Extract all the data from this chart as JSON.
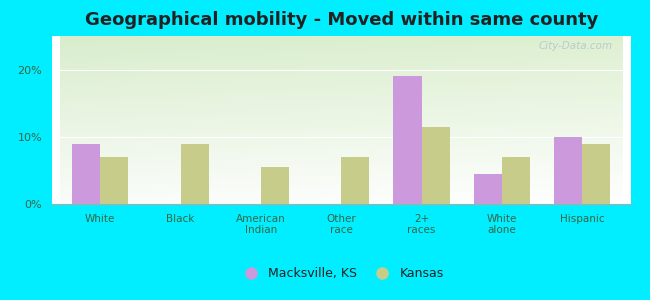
{
  "title": "Geographical mobility - Moved within same county",
  "categories": [
    "White",
    "Black",
    "American\nIndian",
    "Other\nrace",
    "2+\nraces",
    "White\nalone",
    "Hispanic"
  ],
  "macksville_values": [
    9.0,
    0,
    0,
    0,
    19.0,
    4.5,
    10.0
  ],
  "kansas_values": [
    7.0,
    9.0,
    5.5,
    7.0,
    11.5,
    7.0,
    9.0
  ],
  "bar_color_macksville": "#cc99dd",
  "bar_color_kansas": "#c8cc8a",
  "background_outer": "#00eeff",
  "ylim": [
    0,
    25
  ],
  "yticks": [
    0,
    10,
    20
  ],
  "ytick_labels": [
    "0%",
    "10%",
    "20%"
  ],
  "legend_macksville": "Macksville, KS",
  "legend_kansas": "Kansas",
  "title_fontsize": 13,
  "bar_width": 0.35,
  "watermark": "City-Data.com",
  "grad_color_topleft": "#d8edc8",
  "grad_color_bottomright": "#f8fcf4"
}
